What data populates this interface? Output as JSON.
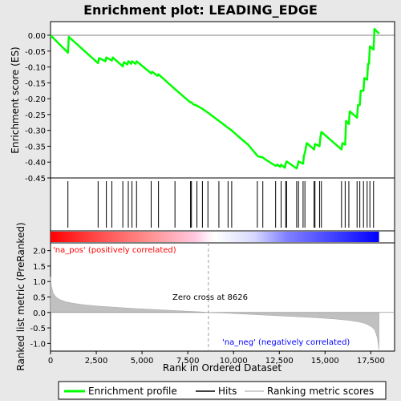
{
  "chart_data": {
    "type": "line",
    "title": "Enrichment plot: LEADING_EDGE",
    "panels": {
      "enrichment": {
        "ylabel": "Enrichment score (ES)",
        "ylim": [
          -0.45,
          0.0
        ],
        "yticks": [
          "0.00",
          "-0.05",
          "-0.10",
          "-0.15",
          "-0.20",
          "-0.25",
          "-0.30",
          "-0.35",
          "-0.40",
          "-0.45"
        ],
        "ytick_values": [
          0.0,
          -0.05,
          -0.1,
          -0.15,
          -0.2,
          -0.25,
          -0.3,
          -0.35,
          -0.4,
          -0.45
        ],
        "series_name": "Enrichment profile",
        "color": "#00ff00",
        "x": [
          0,
          950,
          1000,
          2600,
          2650,
          3000,
          3050,
          3350,
          3400,
          3950,
          4000,
          4200,
          4250,
          4400,
          4450,
          4650,
          4700,
          5500,
          5550,
          5850,
          5900,
          6800,
          6900,
          7650,
          7700,
          7800,
          8000,
          8300,
          8600,
          9200,
          9700,
          9900,
          10200,
          10800,
          11300,
          11350,
          11600,
          11700,
          12300,
          12400,
          12550,
          12600,
          12800,
          12850,
          12900,
          13450,
          13500,
          13550,
          13800,
          13850,
          13900,
          14000,
          14400,
          14450,
          14700,
          14750,
          14800,
          15900,
          15950,
          16100,
          16150,
          16300,
          16350,
          16750,
          16800,
          16900,
          16950,
          17100,
          17150,
          17300,
          17350,
          17400,
          17450,
          17650,
          17700,
          17950
        ],
        "y": [
          0.0,
          -0.055,
          -0.005,
          -0.088,
          -0.072,
          -0.082,
          -0.07,
          -0.08,
          -0.07,
          -0.098,
          -0.085,
          -0.092,
          -0.082,
          -0.09,
          -0.082,
          -0.09,
          -0.082,
          -0.12,
          -0.115,
          -0.128,
          -0.123,
          -0.17,
          -0.175,
          -0.212,
          -0.211,
          -0.218,
          -0.222,
          -0.232,
          -0.244,
          -0.27,
          -0.292,
          -0.3,
          -0.316,
          -0.345,
          -0.38,
          -0.382,
          -0.385,
          -0.39,
          -0.412,
          -0.408,
          -0.415,
          -0.408,
          -0.418,
          -0.405,
          -0.398,
          -0.42,
          -0.41,
          -0.398,
          -0.405,
          -0.38,
          -0.37,
          -0.34,
          -0.36,
          -0.343,
          -0.35,
          -0.32,
          -0.305,
          -0.36,
          -0.34,
          -0.345,
          -0.27,
          -0.28,
          -0.24,
          -0.26,
          -0.22,
          -0.22,
          -0.175,
          -0.175,
          -0.135,
          -0.14,
          -0.09,
          -0.09,
          -0.035,
          -0.045,
          0.02,
          0.005
        ]
      },
      "hits": {
        "positions": [
          950,
          2600,
          3050,
          3350,
          3950,
          4250,
          4450,
          4700,
          5500,
          5900,
          6800,
          7650,
          7700,
          8000,
          8300,
          8600,
          9200,
          9700,
          9900,
          11300,
          11600,
          12300,
          12600,
          12850,
          12900,
          13450,
          13550,
          13800,
          13900,
          14400,
          14450,
          14700,
          14800,
          15900,
          16100,
          16300,
          16750,
          16900,
          17100,
          17300,
          17450,
          17650
        ]
      },
      "ranking": {
        "ylabel": "Ranked list metric (PreRanked)",
        "ylim": [
          -1.25,
          2.25
        ],
        "yticks": [
          "2.0",
          "1.5",
          "1.0",
          "0.5",
          "0.0",
          "-0.5",
          "-1.0"
        ],
        "ytick_values": [
          2.0,
          1.5,
          1.0,
          0.5,
          0.0,
          -0.5,
          -1.0
        ],
        "series_name": "Ranking metric scores",
        "color": "#c0c0c0",
        "x": [
          0,
          50,
          150,
          300,
          500,
          800,
          1200,
          1800,
          2500,
          3500,
          4500,
          5500,
          6500,
          7500,
          8300,
          8626,
          9500,
          10500,
          11500,
          12500,
          13500,
          14500,
          15500,
          16200,
          16800,
          17200,
          17500,
          17700,
          17850,
          17950
        ],
        "y": [
          1.15,
          0.85,
          0.62,
          0.5,
          0.42,
          0.35,
          0.3,
          0.25,
          0.21,
          0.17,
          0.13,
          0.1,
          0.07,
          0.04,
          0.015,
          0.0,
          -0.02,
          -0.05,
          -0.08,
          -0.11,
          -0.14,
          -0.17,
          -0.21,
          -0.25,
          -0.3,
          -0.36,
          -0.45,
          -0.55,
          -0.8,
          -1.2
        ]
      }
    },
    "xlabel": "Rank in Ordered Dataset",
    "xlim": [
      0,
      18800
    ],
    "xticks": [
      "0",
      "2,500",
      "5,000",
      "7,500",
      "10,000",
      "12,500",
      "15,000",
      "17,500"
    ],
    "xtick_values": [
      0,
      2500,
      5000,
      7500,
      10000,
      12500,
      15000,
      17500
    ],
    "n_genes": 17950,
    "zero_cross": 8626,
    "annotations": {
      "na_pos": "'na_pos' (positively correlated)",
      "na_neg": "'na_neg' (negatively correlated)",
      "zero_cross": "Zero cross at 8626"
    },
    "legend": {
      "placement": "bottom",
      "entries": [
        {
          "label": "Enrichment profile",
          "color": "#00ff00"
        },
        {
          "label": "Hits",
          "color": "#000000"
        },
        {
          "label": "Ranking metric scores",
          "color": "#c0c0c0"
        }
      ]
    },
    "colors": {
      "pos_red": "#ff0000",
      "neg_blue": "#0000ff",
      "na_pos_text": "#ff0000",
      "na_neg_text": "#0000ff",
      "zero_line": "#a0a0a0",
      "frame_bg": "#e8e8e8"
    }
  }
}
